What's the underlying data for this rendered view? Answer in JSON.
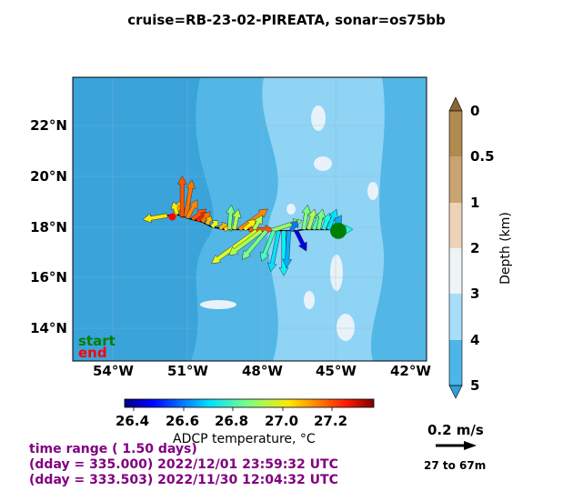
{
  "title": "cruise=RB-23-02-PIREATA,   sonar=os75bb",
  "map": {
    "lat_ticks": [
      "22°N",
      "20°N",
      "18°N",
      "16°N",
      "14°N"
    ],
    "lon_ticks": [
      "54°W",
      "51°W",
      "48°W",
      "45°W",
      "42°W"
    ],
    "start_label": "start",
    "end_label": "end",
    "start_color": "#008000",
    "end_color": "#ff0000"
  },
  "depth_colorbar": {
    "label": "Depth (km)",
    "ticks": [
      "0",
      "0.5",
      "1",
      "2",
      "3",
      "4",
      "5"
    ],
    "colors": [
      "#b08a4e",
      "#c9a472",
      "#ecd3b8",
      "#eef3f6",
      "#a6defa",
      "#4db6e8"
    ]
  },
  "temp_colorbar": {
    "label": "ADCP temperature, °C",
    "ticks": [
      "26.4",
      "26.6",
      "26.8",
      "27.0",
      "27.2"
    ],
    "range": [
      26.35,
      27.36
    ]
  },
  "scale": {
    "label": "0.2 m/s",
    "depth_range": "27 to 67m",
    "value": 0.2
  },
  "time": {
    "range": "time range ( 1.50 days)",
    "end": "(dday = 335.000) 2022/12/01 23:59:32 UTC",
    "start": "(dday = 333.503) 2022/11/30 12:04:32 UTC"
  },
  "chart_data": {
    "type": "vector",
    "units": "m/s",
    "start": [
      -44.9,
      17.85
    ],
    "end": [
      -51.6,
      18.4
    ],
    "vectors": [
      [
        -51.8,
        18.45,
        -0.12,
        -0.02,
        27.0
      ],
      [
        -51.5,
        18.45,
        0.04,
        0.08,
        27.05
      ],
      [
        -51.4,
        18.5,
        -0.02,
        0.06,
        27.0
      ],
      [
        -51.3,
        18.45,
        0.06,
        0.03,
        27.05
      ],
      [
        -51.2,
        18.4,
        0.0,
        0.2,
        27.15
      ],
      [
        -51.05,
        18.4,
        0.03,
        0.18,
        27.12
      ],
      [
        -51.0,
        18.35,
        0.05,
        0.09,
        27.1
      ],
      [
        -50.8,
        18.3,
        0.07,
        0.05,
        27.15
      ],
      [
        -50.6,
        18.25,
        0.06,
        0.04,
        27.2
      ],
      [
        -50.4,
        18.2,
        0.04,
        0.05,
        27.12
      ],
      [
        -50.2,
        18.1,
        0.02,
        0.04,
        27.05
      ],
      [
        -50.0,
        18.0,
        0.03,
        0.03,
        26.95
      ],
      [
        -49.7,
        17.95,
        0.04,
        0.02,
        27.05
      ],
      [
        -49.5,
        17.9,
        0.05,
        0.02,
        27.0
      ],
      [
        -49.3,
        17.9,
        0.01,
        0.12,
        26.85
      ],
      [
        -49.1,
        17.9,
        0.02,
        0.1,
        26.9
      ],
      [
        -48.9,
        17.9,
        0.14,
        0.1,
        27.1
      ],
      [
        -48.7,
        17.9,
        0.06,
        0.05,
        27.0
      ],
      [
        -48.5,
        17.9,
        0.12,
        0.0,
        27.15
      ],
      [
        -48.3,
        17.9,
        0.04,
        0.07,
        26.9
      ],
      [
        -48.2,
        17.85,
        -0.22,
        -0.16,
        26.95
      ],
      [
        -48.0,
        17.85,
        -0.16,
        -0.12,
        26.9
      ],
      [
        -47.8,
        17.85,
        -0.12,
        -0.14,
        26.85
      ],
      [
        -47.6,
        17.85,
        0.15,
        0.05,
        26.88
      ],
      [
        -47.5,
        17.85,
        -0.06,
        -0.15,
        26.8
      ],
      [
        -47.3,
        17.85,
        -0.04,
        -0.2,
        26.7
      ],
      [
        -47.1,
        17.85,
        0.0,
        -0.22,
        26.72
      ],
      [
        -46.9,
        17.85,
        -0.01,
        -0.18,
        26.65
      ],
      [
        -46.8,
        17.85,
        0.03,
        0.05,
        26.6
      ],
      [
        -46.6,
        17.85,
        0.05,
        -0.1,
        26.45
      ],
      [
        -46.3,
        17.9,
        0.02,
        0.12,
        26.85
      ],
      [
        -46.1,
        17.9,
        0.03,
        0.1,
        26.9
      ],
      [
        -45.9,
        17.9,
        0.04,
        0.09,
        26.8
      ],
      [
        -45.7,
        17.9,
        0.02,
        0.1,
        26.85
      ],
      [
        -45.5,
        17.9,
        0.03,
        0.08,
        26.75
      ],
      [
        -45.3,
        17.9,
        0.04,
        0.1,
        26.7
      ],
      [
        -45.1,
        17.9,
        0.04,
        0.07,
        26.65
      ],
      [
        -44.9,
        17.9,
        0.07,
        0.0,
        26.75
      ]
    ]
  }
}
